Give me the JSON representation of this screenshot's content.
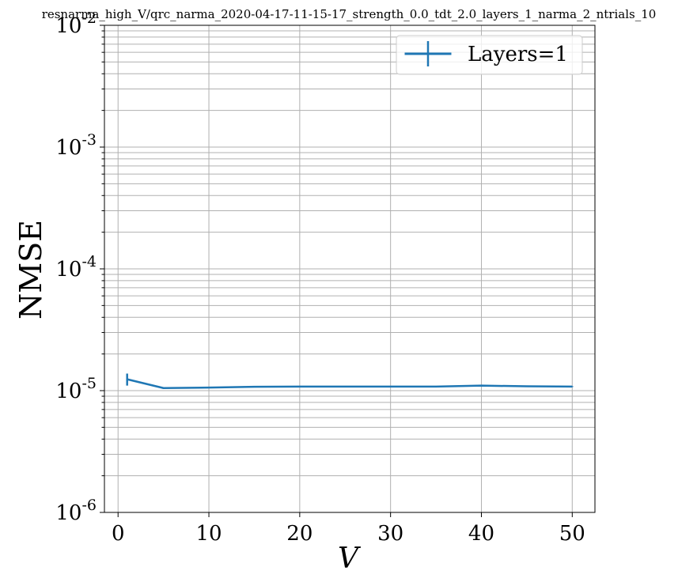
{
  "chart_data": {
    "type": "line",
    "title": "resnarma_high_V/qrc_narma_2020-04-17-11-15-17_strength_0.0_tdt_2.0_layers_1_narma_2_ntrials_10",
    "xlabel": "V",
    "ylabel": "NMSE",
    "xlim": [
      -1.5,
      52.5
    ],
    "ylim": [
      1e-06,
      0.01
    ],
    "yscale": "log",
    "grid": true,
    "x_ticks": [
      0,
      10,
      20,
      30,
      40,
      50
    ],
    "x_tick_labels": [
      "0",
      "10",
      "20",
      "30",
      "40",
      "50"
    ],
    "y_ticks": [
      {
        "value": 0.01,
        "base": "10",
        "exp": "-2"
      },
      {
        "value": 0.001,
        "base": "10",
        "exp": "-3"
      },
      {
        "value": 0.0001,
        "base": "10",
        "exp": "-4"
      },
      {
        "value": 1e-05,
        "base": "10",
        "exp": "-5"
      },
      {
        "value": 1e-06,
        "base": "10",
        "exp": "-6"
      }
    ],
    "legend_position": "top-right",
    "series": [
      {
        "name": "Layers=1",
        "color": "#1f77b4",
        "x": [
          1,
          5,
          10,
          15,
          20,
          25,
          30,
          35,
          40,
          45,
          50
        ],
        "y": [
          1.24e-05,
          1.05e-05,
          1.06e-05,
          1.075e-05,
          1.08e-05,
          1.08e-05,
          1.08e-05,
          1.08e-05,
          1.1e-05,
          1.085e-05,
          1.08e-05
        ],
        "error": [
          1.4e-06,
          1.5e-07,
          1e-07,
          1e-07,
          1e-07,
          1e-07,
          1e-07,
          1e-07,
          1e-07,
          1e-07,
          1e-07
        ]
      }
    ]
  }
}
